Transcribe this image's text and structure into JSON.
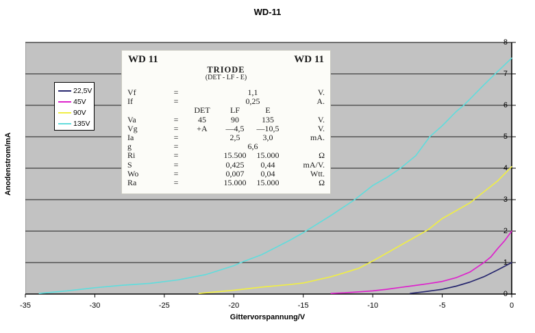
{
  "chart_data": {
    "type": "line",
    "title": "WD-11",
    "xlabel": "Gittervorspannung/V",
    "ylabel": "Anodenstrom/mA",
    "xlim": [
      -35,
      0
    ],
    "ylim": [
      0,
      8
    ],
    "x_ticks": [
      -35,
      -30,
      -25,
      -20,
      -15,
      -10,
      -5,
      0
    ],
    "y_ticks": [
      0,
      1,
      2,
      3,
      4,
      5,
      6,
      7,
      8
    ],
    "grid": "horizontal",
    "legend_position": "upper-left-inside",
    "plot_bg_color": "#c2c2c2",
    "gridline_color": "#1a1a1a",
    "series": [
      {
        "name": "22,5V",
        "color": "#26266e",
        "points": [
          [
            -7.3,
            0.02
          ],
          [
            -6.5,
            0.06
          ],
          [
            -6,
            0.09
          ],
          [
            -5,
            0.15
          ],
          [
            -4,
            0.25
          ],
          [
            -3,
            0.38
          ],
          [
            -2,
            0.55
          ],
          [
            -1,
            0.77
          ],
          [
            0,
            1.0
          ]
        ]
      },
      {
        "name": "45V",
        "color": "#dd22cc",
        "points": [
          [
            -13,
            0.02
          ],
          [
            -12,
            0.04
          ],
          [
            -11,
            0.07
          ],
          [
            -10,
            0.1
          ],
          [
            -9,
            0.15
          ],
          [
            -8,
            0.21
          ],
          [
            -7,
            0.27
          ],
          [
            -6,
            0.33
          ],
          [
            -5,
            0.4
          ],
          [
            -4,
            0.52
          ],
          [
            -3,
            0.7
          ],
          [
            -2,
            1.0
          ],
          [
            -1.5,
            1.18
          ],
          [
            -1,
            1.45
          ],
          [
            -0.5,
            1.7
          ],
          [
            0,
            2.0
          ]
        ]
      },
      {
        "name": "90V",
        "color": "#f0ee45",
        "points": [
          [
            -22.5,
            0.02
          ],
          [
            -20,
            0.12
          ],
          [
            -18,
            0.22
          ],
          [
            -16,
            0.3
          ],
          [
            -15,
            0.35
          ],
          [
            -14,
            0.45
          ],
          [
            -13,
            0.55
          ],
          [
            -12,
            0.68
          ],
          [
            -11,
            0.82
          ],
          [
            -10,
            1.05
          ],
          [
            -9,
            1.3
          ],
          [
            -8,
            1.55
          ],
          [
            -7,
            1.8
          ],
          [
            -6,
            2.05
          ],
          [
            -5,
            2.4
          ],
          [
            -4,
            2.65
          ],
          [
            -3,
            2.9
          ],
          [
            -2,
            3.25
          ],
          [
            -1,
            3.6
          ],
          [
            0,
            4.05
          ]
        ]
      },
      {
        "name": "135V",
        "color": "#62dcdc",
        "points": [
          [
            -34,
            0.02
          ],
          [
            -32,
            0.1
          ],
          [
            -30,
            0.2
          ],
          [
            -28,
            0.28
          ],
          [
            -26,
            0.34
          ],
          [
            -24,
            0.45
          ],
          [
            -22,
            0.62
          ],
          [
            -20,
            0.9
          ],
          [
            -19.5,
            1.0
          ],
          [
            -18,
            1.25
          ],
          [
            -16,
            1.7
          ],
          [
            -15,
            1.95
          ],
          [
            -13,
            2.5
          ],
          [
            -11.3,
            3.0
          ],
          [
            -10,
            3.45
          ],
          [
            -9,
            3.7
          ],
          [
            -8,
            4.0
          ],
          [
            -6.9,
            4.4
          ],
          [
            -5.9,
            5.0
          ],
          [
            -5,
            5.35
          ],
          [
            -4,
            5.8
          ],
          [
            -3.45,
            6.0
          ],
          [
            -3,
            6.2
          ],
          [
            -2,
            6.65
          ],
          [
            -1,
            7.08
          ],
          [
            0,
            7.5
          ]
        ]
      }
    ]
  },
  "datasheet": {
    "title_left": "WD 11",
    "title_right": "WD 11",
    "heading": "TRIODE",
    "subheading": "(DET - LF - E)",
    "rows": [
      {
        "label": "Vf",
        "eq": "=",
        "mid": "1,1",
        "unit": "V."
      },
      {
        "label": "If",
        "eq": "=",
        "mid": "0,25",
        "unit": "A."
      },
      {
        "label": "",
        "eq": "",
        "det": "DET",
        "lf": "LF",
        "e": "E",
        "unit": ""
      },
      {
        "label": "Va",
        "eq": "=",
        "det": "45",
        "lf": "90",
        "e": "135",
        "unit": "V."
      },
      {
        "label": "Vg",
        "eq": "=",
        "det": "+A",
        "lf": "—4,5",
        "e": "—10,5",
        "unit": "V."
      },
      {
        "label": "Ia",
        "eq": "=",
        "det": "",
        "lf": "2,5",
        "e": "3,0",
        "unit": "mA."
      },
      {
        "label": "g",
        "eq": "=",
        "mid": "6,6",
        "unit": ""
      },
      {
        "label": "Ri",
        "eq": "=",
        "det": "",
        "lf": "15.500",
        "e": "15.000",
        "unit": "Ω"
      },
      {
        "label": "S",
        "eq": "=",
        "det": "",
        "lf": "0,425",
        "e": "0,44",
        "unit": "mA/V."
      },
      {
        "label": "Wo",
        "eq": "=",
        "det": "",
        "lf": "0,007",
        "e": "0,04",
        "unit": "Wtt."
      },
      {
        "label": "Ra",
        "eq": "=",
        "det": "",
        "lf": "15.000",
        "e": "15.000",
        "unit": "Ω"
      }
    ]
  }
}
